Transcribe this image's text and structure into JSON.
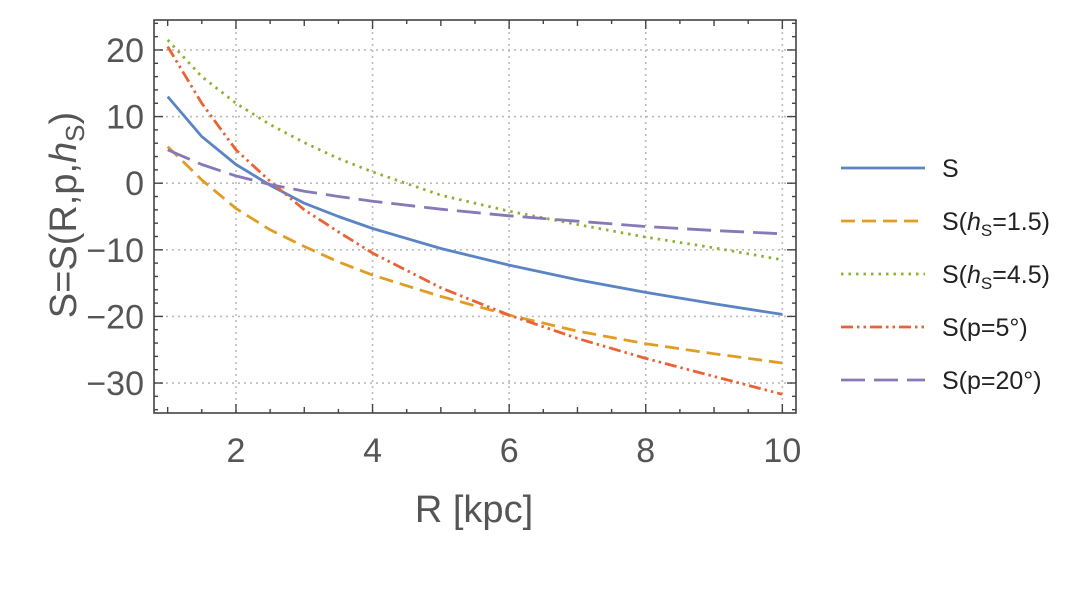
{
  "chart_data": {
    "type": "line",
    "xlabel": "R [kpc]",
    "ylabel_parts": [
      "S=S(R,p,",
      "h",
      "S",
      ")"
    ],
    "xlim": [
      0.8,
      10.2
    ],
    "ylim": [
      -34.5,
      24.5
    ],
    "xticks": [
      2,
      4,
      6,
      8,
      10
    ],
    "yticks": [
      20,
      10,
      0,
      -10,
      -20,
      -30
    ],
    "ytick_labels": [
      "20",
      "10",
      "0",
      "−10",
      "−20",
      "−30"
    ],
    "grid": true,
    "legend_position": "right",
    "series": [
      {
        "name": "S",
        "label_parts": [
          "S"
        ],
        "color": "#5b84c4",
        "dash": "solid",
        "x": [
          1,
          1.5,
          2,
          2.5,
          3,
          3.5,
          4,
          5,
          6,
          7,
          8,
          9,
          10
        ],
        "y": [
          13,
          7,
          2.8,
          -0.3,
          -3,
          -5,
          -6.8,
          -9.8,
          -12.3,
          -14.5,
          -16.4,
          -18.1,
          -19.7
        ]
      },
      {
        "name": "S(hS=1.5)",
        "label_parts": [
          "S(",
          "h",
          "S",
          "=1.5)"
        ],
        "color": "#e19c24",
        "dash": "long-dash",
        "x": [
          1,
          1.5,
          2,
          2.5,
          3,
          3.5,
          4,
          5,
          6,
          7,
          8,
          9,
          10
        ],
        "y": [
          5.5,
          0.5,
          -3.8,
          -7,
          -9.5,
          -11.8,
          -13.8,
          -17,
          -19.8,
          -22.2,
          -24.1,
          -25.6,
          -27
        ]
      },
      {
        "name": "S(hS=4.5)",
        "label_parts": [
          "S(",
          "h",
          "S",
          "=4.5)"
        ],
        "color": "#8fb032",
        "dash": "dotted",
        "x": [
          1,
          1.5,
          2,
          2.5,
          3,
          3.5,
          4,
          5,
          6,
          7,
          8,
          9,
          10
        ],
        "y": [
          21.5,
          16,
          12,
          8.8,
          6.1,
          3.7,
          1.7,
          -1.8,
          -4.2,
          -6.2,
          -8.1,
          -9.7,
          -11.5
        ]
      },
      {
        "name": "S(p=5°)",
        "label_parts": [
          "S(p=5°)"
        ],
        "color": "#eb6235",
        "dash": "dash-dot",
        "x": [
          1,
          1.5,
          2,
          2.5,
          3,
          3.5,
          4,
          5,
          6,
          7,
          8,
          9,
          10
        ],
        "y": [
          20.5,
          12,
          5,
          0.3,
          -4,
          -7.3,
          -10.5,
          -15.7,
          -19.8,
          -23.3,
          -26.3,
          -29,
          -31.7
        ]
      },
      {
        "name": "S(p=20°)",
        "label_parts": [
          "S(p=20°)"
        ],
        "color": "#8778b8",
        "dash": "long-long-dash",
        "x": [
          1,
          1.5,
          2,
          2.5,
          3,
          3.5,
          4,
          5,
          6,
          7,
          8,
          9,
          10
        ],
        "y": [
          5,
          2.8,
          1.1,
          -0.2,
          -1.2,
          -2,
          -2.7,
          -3.9,
          -4.9,
          -5.7,
          -6.5,
          -7.1,
          -7.6
        ]
      }
    ]
  }
}
